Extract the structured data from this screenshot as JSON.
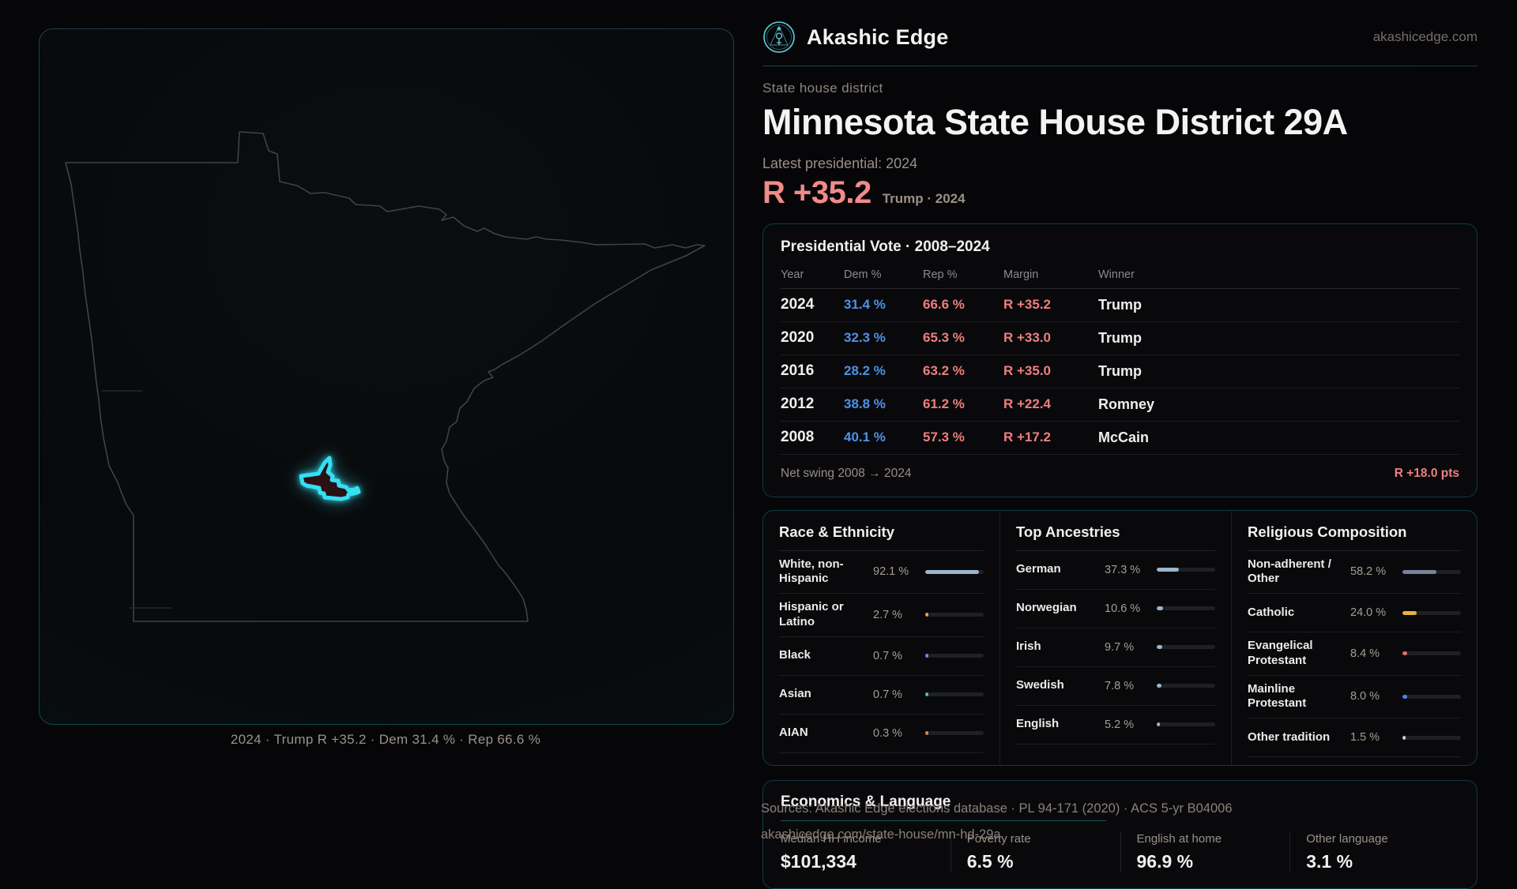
{
  "brand": {
    "name": "Akashic Edge",
    "domain": "akashicedge.com"
  },
  "header": {
    "eyebrow": "State house district",
    "title": "Minnesota State House District 29A",
    "latest_label": "Latest presidential: 2024",
    "margin_value": "R +35.2",
    "margin_context": "Trump · 2024"
  },
  "map": {
    "caption": "2024 · Trump R +35.2 · Dem 31.4 % · Rep 66.6 %"
  },
  "pres": {
    "title": "Presidential Vote · 2008–2024",
    "columns": [
      "Year",
      "Dem %",
      "Rep %",
      "Margin",
      "Winner"
    ],
    "rows": [
      {
        "year": "2024",
        "dem": "31.4 %",
        "rep": "66.6 %",
        "margin": "R +35.2",
        "winner": "Trump"
      },
      {
        "year": "2020",
        "dem": "32.3 %",
        "rep": "65.3 %",
        "margin": "R +33.0",
        "winner": "Trump"
      },
      {
        "year": "2016",
        "dem": "28.2 %",
        "rep": "63.2 %",
        "margin": "R +35.0",
        "winner": "Trump"
      },
      {
        "year": "2012",
        "dem": "38.8 %",
        "rep": "61.2 %",
        "margin": "R +22.4",
        "winner": "Romney"
      },
      {
        "year": "2008",
        "dem": "40.1 %",
        "rep": "57.3 %",
        "margin": "R +17.2",
        "winner": "McCain"
      }
    ],
    "net_swing_label": "Net swing 2008 → 2024",
    "net_swing_value": "R +18.0 pts"
  },
  "demographics": {
    "race": {
      "title": "Race & Ethnicity",
      "rows": [
        {
          "label": "White, non-Hispanic",
          "value": "92.1 %",
          "pct": 92.1,
          "color": "#9db4cc"
        },
        {
          "label": "Hispanic or Latino",
          "value": "2.7 %",
          "pct": 2.7,
          "color": "#e8a33d"
        },
        {
          "label": "Black",
          "value": "0.7 %",
          "pct": 0.7,
          "color": "#8d7bf0"
        },
        {
          "label": "Asian",
          "value": "0.7 %",
          "pct": 0.7,
          "color": "#43c6a8"
        },
        {
          "label": "AIAN",
          "value": "0.3 %",
          "pct": 0.3,
          "color": "#e8853d"
        }
      ]
    },
    "ancestries": {
      "title": "Top Ancestries",
      "rows": [
        {
          "label": "German",
          "value": "37.3 %",
          "pct": 37.3,
          "color": "#9db4cc"
        },
        {
          "label": "Norwegian",
          "value": "10.6 %",
          "pct": 10.6,
          "color": "#9db4cc"
        },
        {
          "label": "Irish",
          "value": "9.7 %",
          "pct": 9.7,
          "color": "#9db4cc"
        },
        {
          "label": "Swedish",
          "value": "7.8 %",
          "pct": 7.8,
          "color": "#9db4cc"
        },
        {
          "label": "English",
          "value": "5.2 %",
          "pct": 5.2,
          "color": "#9db4cc"
        }
      ]
    },
    "religion": {
      "title": "Religious Composition",
      "rows": [
        {
          "label": "Non-adherent / Other",
          "value": "58.2 %",
          "pct": 58.2,
          "color": "#77839b"
        },
        {
          "label": "Catholic",
          "value": "24.0 %",
          "pct": 24.0,
          "color": "#e3b341"
        },
        {
          "label": "Evangelical Protestant",
          "value": "8.4 %",
          "pct": 8.4,
          "color": "#e06c6c"
        },
        {
          "label": "Mainline Protestant",
          "value": "8.0 %",
          "pct": 8.0,
          "color": "#4a86e8"
        },
        {
          "label": "Other tradition",
          "value": "1.5 %",
          "pct": 1.5,
          "color": "#cfcfcf"
        }
      ]
    }
  },
  "economics": {
    "title": "Economics & Language",
    "stats": [
      {
        "label": "Median HH income",
        "value": "$101,334"
      },
      {
        "label": "Poverty rate",
        "value": "6.5 %"
      },
      {
        "label": "English at home",
        "value": "96.9 %"
      },
      {
        "label": "Other language",
        "value": "3.1 %"
      }
    ]
  },
  "footer": {
    "line1": "Sources: Akashic Edge elections database · PL 94-171 (2020) · ACS 5-yr B04006",
    "line2": "akashicedge.com/state-house/mn-hd-29a"
  },
  "colors": {
    "accent_cyan": "#36dff2",
    "dem_blue": "#4f92e6",
    "rep_red": "#ee7f7f",
    "panel_border": "#113b43"
  }
}
